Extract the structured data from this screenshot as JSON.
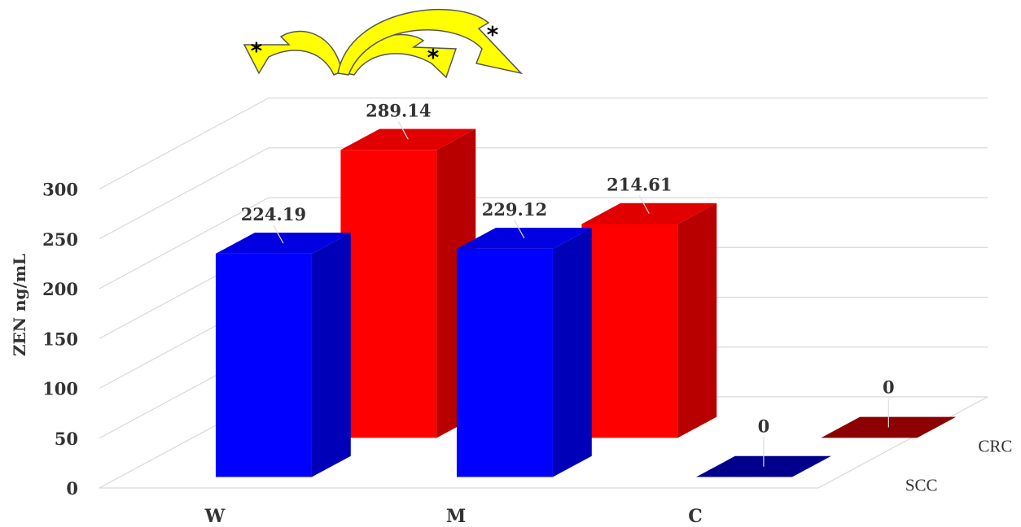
{
  "chart_data": {
    "type": "bar",
    "subtype": "3d-column",
    "ylabel": "ZEN ng/mL",
    "ylim": [
      0,
      300
    ],
    "yticks": [
      0,
      50,
      100,
      150,
      200,
      250,
      300
    ],
    "categories": [
      "W",
      "M",
      "C"
    ],
    "series": [
      {
        "name": "SCC",
        "values": [
          224.19,
          229.12,
          0
        ],
        "labels": [
          "224.19",
          "229.12",
          "0"
        ],
        "color": "#0000FF"
      },
      {
        "name": "CRC",
        "values": [
          289.14,
          214.61,
          0
        ],
        "labels": [
          "289.14",
          "214.61",
          "0"
        ],
        "color": "#FF0000"
      }
    ],
    "grid": true,
    "annotations": {
      "significance_marker": "*",
      "arrow_color": "#FFFF00"
    }
  }
}
